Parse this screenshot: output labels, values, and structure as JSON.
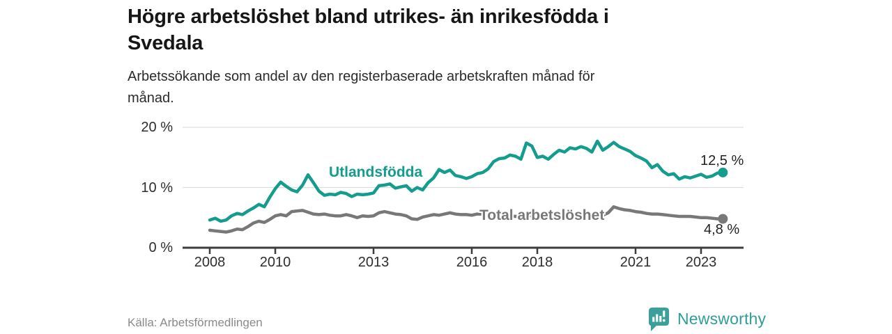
{
  "header": {
    "title_line1": "Högre arbetslöshet bland utrikes- än inrikesfödda i",
    "title_line2": "Svedala",
    "subtitle_line1": "Arbetssökande som andel av den registerbaserade arbetskraften månad för",
    "subtitle_line2": "månad."
  },
  "footer": {
    "source": "Källa: Arbetsförmedlingen",
    "brand": "Newsworthy"
  },
  "colors": {
    "foreign_line": "#149c8d",
    "total_line": "#787878",
    "axis": "#3d3d3d",
    "grid": "#dddddd",
    "tick_text": "#2e2e2e",
    "title_text": "#161616",
    "value_label_text": "#222222",
    "muted_text": "#8a8a8a",
    "brand_teal": "#3b9f9a"
  },
  "chart_data": {
    "type": "line",
    "title": "Högre arbetslöshet bland utrikes- än inrikesfödda i Svedala",
    "subtitle": "Arbetssökande som andel av den registerbaserade arbetskraften månad för månad.",
    "xlabel": "",
    "ylabel": "",
    "grid": "horizontal",
    "legend": "inline-labels",
    "x_axis": {
      "unit": "year",
      "ticks": [
        2008,
        2010,
        2013,
        2016,
        2018,
        2021,
        2023
      ],
      "range": [
        2007.2,
        2024.3
      ]
    },
    "y_axis": {
      "unit": "%",
      "ticks": [
        0,
        10,
        20
      ],
      "tick_labels": [
        "0 %",
        "10 %",
        "20 %"
      ],
      "range": [
        0,
        20
      ]
    },
    "x_start": 2008.0,
    "x_step_years": 0.16667,
    "series": [
      {
        "name": "Utlandsfödda",
        "color": "#149c8d",
        "end_label": "12,5 %",
        "end_value": 12.5,
        "values": [
          4.6,
          4.9,
          4.4,
          4.6,
          5.3,
          5.7,
          5.5,
          6.1,
          6.6,
          7.2,
          6.8,
          8.4,
          9.8,
          10.9,
          10.2,
          9.6,
          9.3,
          10.4,
          12.1,
          10.8,
          9.4,
          8.7,
          8.9,
          8.8,
          9.2,
          9.0,
          8.5,
          8.9,
          8.8,
          8.9,
          9.1,
          10.3,
          10.4,
          10.6,
          9.9,
          10.1,
          10.3,
          9.4,
          10.0,
          9.6,
          10.8,
          11.6,
          13.0,
          12.5,
          12.9,
          12.0,
          11.8,
          11.5,
          11.8,
          12.3,
          12.5,
          13.1,
          14.3,
          14.8,
          14.9,
          15.4,
          15.2,
          14.7,
          17.4,
          16.9,
          15.0,
          15.2,
          14.7,
          15.5,
          16.2,
          15.9,
          16.6,
          16.4,
          16.8,
          16.5,
          15.9,
          17.7,
          16.2,
          16.8,
          17.5,
          16.8,
          16.4,
          16.0,
          15.3,
          14.9,
          14.4,
          13.3,
          13.8,
          12.7,
          12.1,
          12.3,
          11.4,
          11.8,
          11.6,
          11.9,
          12.2,
          11.7,
          11.9,
          12.4,
          12.5
        ]
      },
      {
        "name": "Total arbetslöshet",
        "color": "#787878",
        "end_label": "4,8 %",
        "end_value": 4.8,
        "values": [
          2.9,
          2.8,
          2.7,
          2.6,
          2.8,
          3.1,
          3.0,
          3.5,
          4.1,
          4.4,
          4.2,
          4.7,
          5.3,
          5.5,
          5.3,
          6.0,
          6.1,
          6.2,
          5.9,
          5.6,
          5.5,
          5.6,
          5.4,
          5.3,
          5.3,
          5.5,
          5.3,
          5.0,
          5.3,
          5.2,
          5.3,
          5.8,
          6.0,
          5.8,
          5.6,
          5.5,
          5.3,
          4.8,
          4.7,
          5.1,
          5.3,
          5.5,
          5.4,
          5.6,
          5.8,
          5.6,
          5.5,
          5.5,
          5.4,
          5.6,
          5.6,
          5.4,
          5.3,
          5.5,
          5.4,
          5.3,
          5.2,
          5.3,
          5.4,
          5.3,
          5.2,
          5.3,
          5.2,
          5.1,
          5.2,
          5.3,
          5.2,
          5.1,
          5.2,
          5.1,
          5.2,
          5.3,
          5.4,
          5.8,
          6.8,
          6.5,
          6.3,
          6.2,
          6.0,
          5.9,
          5.7,
          5.6,
          5.6,
          5.5,
          5.4,
          5.3,
          5.2,
          5.2,
          5.2,
          5.1,
          5.0,
          5.0,
          4.9,
          4.8,
          4.8
        ]
      }
    ]
  }
}
